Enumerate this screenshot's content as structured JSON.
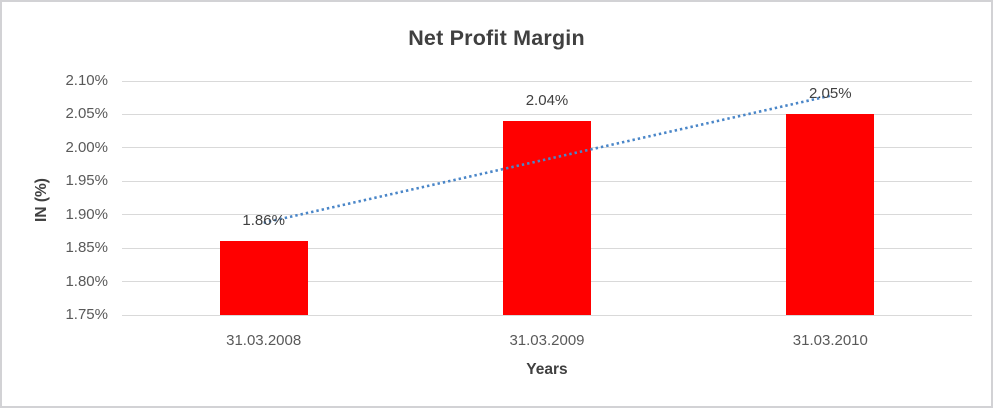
{
  "chart_data": {
    "type": "bar",
    "title": "Net Profit Margin",
    "xlabel": "Years",
    "ylabel": "IN (%)",
    "categories": [
      "31.03.2008",
      "31.03.2009",
      "31.03.2010"
    ],
    "values": [
      1.86,
      2.04,
      2.05
    ],
    "data_labels": [
      "1.86%",
      "2.04%",
      "2.05%"
    ],
    "ylim": [
      1.75,
      2.1
    ],
    "ytick_step": 0.05,
    "ytick_labels": [
      "1.75%",
      "1.80%",
      "1.85%",
      "1.90%",
      "1.95%",
      "2.00%",
      "2.05%",
      "2.10%"
    ],
    "grid": true,
    "legend": "none",
    "bar_color": "#ff0000",
    "gridline_color": "#d9d9d9",
    "tick_label_color": "#595959",
    "title_color": "#404040",
    "trendline": {
      "type": "linear",
      "style": "dotted",
      "color": "#4a86c8",
      "start_value": 1.888,
      "end_value": 2.078
    }
  }
}
